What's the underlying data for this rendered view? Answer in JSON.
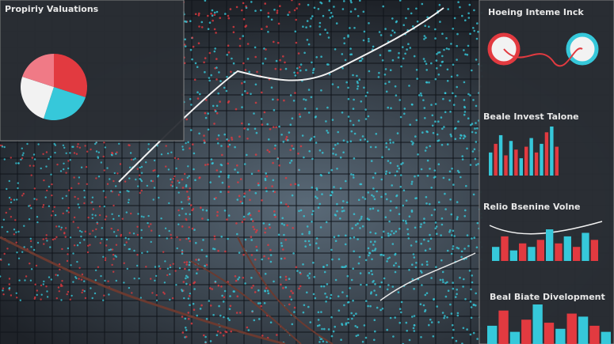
{
  "panels": {
    "valuations": {
      "title": "Propiriy Valuations",
      "pie": {
        "values": [
          30,
          25,
          25,
          20
        ],
        "colors": [
          "#e23a40",
          "#36c8da",
          "#f2f2f2",
          "#f07a86"
        ]
      }
    },
    "housing": {
      "title": "Hoeing Inteme Inck"
    },
    "investment": {
      "title": "Beale Invest Talone",
      "bars": {
        "values": [
          40,
          55,
          70,
          35,
          60,
          45,
          30,
          50,
          65,
          40,
          55,
          75,
          85,
          50
        ],
        "colors": [
          "#36c8da",
          "#e23a40"
        ]
      }
    },
    "volume": {
      "title": "Relio Bsenine Volne",
      "bars": {
        "values": [
          20,
          35,
          15,
          25,
          20,
          30,
          45,
          25,
          35,
          20,
          40,
          30
        ],
        "colors": [
          "#36c8da",
          "#e23a40"
        ]
      }
    },
    "development": {
      "title": "Beal Biate Divelopment",
      "bars": {
        "values": [
          30,
          55,
          20,
          40,
          65,
          35,
          25,
          50,
          45,
          30,
          20
        ],
        "colors": [
          "#36c8da",
          "#e23a40"
        ]
      }
    }
  }
}
